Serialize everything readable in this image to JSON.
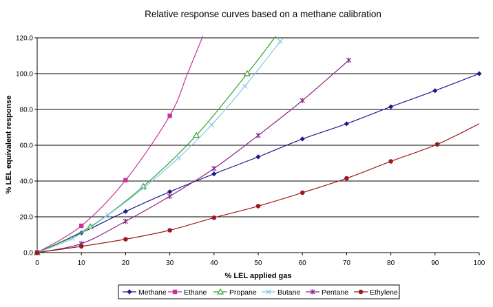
{
  "chart_data": {
    "type": "line",
    "title": "Relative response curves based on a methane calibration",
    "xlabel": "% LEL applied gas",
    "ylabel": "% LEL equivalent response",
    "xlim": [
      0,
      100
    ],
    "ylim": [
      0,
      120
    ],
    "x_ticks": [
      "0",
      "10",
      "20",
      "30",
      "40",
      "50",
      "60",
      "70",
      "80",
      "90",
      "100"
    ],
    "y_ticks": [
      "0.0",
      "20.0",
      "40.0",
      "60.0",
      "80.0",
      "100.0",
      "120.0"
    ],
    "grid": "horizontal",
    "legend_position": "bottom",
    "series": [
      {
        "name": "Methane",
        "color": "#1a1a8c",
        "marker": "diamond",
        "points": [
          [
            0,
            0
          ],
          [
            10,
            11
          ],
          [
            20,
            23
          ],
          [
            30,
            34
          ],
          [
            40,
            44
          ],
          [
            50,
            53.5
          ],
          [
            60,
            63.5
          ],
          [
            70,
            72
          ],
          [
            80,
            81.5
          ],
          [
            90,
            90.5
          ],
          [
            100,
            100
          ]
        ],
        "curve": [
          [
            0,
            0
          ],
          [
            10,
            11
          ],
          [
            20,
            23
          ],
          [
            30,
            34
          ],
          [
            40,
            44
          ],
          [
            50,
            53.5
          ],
          [
            60,
            63.5
          ],
          [
            70,
            72
          ],
          [
            80,
            81.5
          ],
          [
            90,
            90.5
          ],
          [
            100,
            100
          ]
        ]
      },
      {
        "name": "Ethane",
        "color": "#c8329c",
        "marker": "square",
        "points": [
          [
            0,
            0
          ],
          [
            10,
            15
          ],
          [
            20,
            40.5
          ],
          [
            30,
            76.5
          ]
        ],
        "curve": [
          [
            0,
            0
          ],
          [
            10,
            15
          ],
          [
            20,
            40.5
          ],
          [
            30,
            76.5
          ],
          [
            34,
            100
          ],
          [
            37.5,
            121
          ]
        ]
      },
      {
        "name": "Propane",
        "color": "#33a02c",
        "marker": "triangle",
        "points": [
          [
            0,
            0
          ],
          [
            12,
            14.5
          ],
          [
            24,
            37
          ],
          [
            36,
            65.5
          ],
          [
            47.5,
            100
          ]
        ],
        "curve": [
          [
            0,
            0
          ],
          [
            12,
            14.5
          ],
          [
            24,
            37
          ],
          [
            36,
            65.5
          ],
          [
            47.5,
            100
          ],
          [
            54,
            121
          ]
        ]
      },
      {
        "name": "Butane",
        "color": "#7ec8e3",
        "marker": "x",
        "points": [
          [
            0,
            0
          ],
          [
            8,
            8
          ],
          [
            16,
            21
          ],
          [
            24,
            36
          ],
          [
            32,
            53
          ],
          [
            39.5,
            71.5
          ],
          [
            47,
            93
          ],
          [
            55,
            118
          ]
        ],
        "curve": [
          [
            0,
            0
          ],
          [
            8,
            8
          ],
          [
            16,
            21
          ],
          [
            24,
            36
          ],
          [
            32,
            53
          ],
          [
            39.5,
            71.5
          ],
          [
            47,
            93
          ],
          [
            55,
            118
          ]
        ]
      },
      {
        "name": "Pentane",
        "color": "#8b2587",
        "marker": "star",
        "points": [
          [
            0,
            0
          ],
          [
            10,
            5
          ],
          [
            20,
            17.5
          ],
          [
            30,
            31.5
          ],
          [
            40,
            47
          ],
          [
            50,
            65.5
          ],
          [
            60,
            85
          ],
          [
            70.5,
            107.5
          ]
        ],
        "curve": [
          [
            0,
            0
          ],
          [
            10,
            5
          ],
          [
            20,
            17.5
          ],
          [
            30,
            31.5
          ],
          [
            40,
            47
          ],
          [
            50,
            65.5
          ],
          [
            60,
            85
          ],
          [
            70.5,
            107.5
          ]
        ]
      },
      {
        "name": "Ethylene",
        "color": "#9b1c1c",
        "marker": "circle",
        "points": [
          [
            0,
            0
          ],
          [
            10,
            3.5
          ],
          [
            20,
            7.5
          ],
          [
            30,
            12.5
          ],
          [
            40,
            19.5
          ],
          [
            50,
            26
          ],
          [
            60,
            33.5
          ],
          [
            70,
            41.5
          ],
          [
            80,
            51
          ],
          [
            90.5,
            60.5
          ]
        ],
        "curve": [
          [
            0,
            0
          ],
          [
            10,
            3.5
          ],
          [
            20,
            7.5
          ],
          [
            30,
            12.5
          ],
          [
            40,
            19.5
          ],
          [
            50,
            26
          ],
          [
            60,
            33.5
          ],
          [
            70,
            41.5
          ],
          [
            80,
            51
          ],
          [
            90.5,
            60.5
          ],
          [
            100,
            72
          ]
        ]
      }
    ]
  }
}
